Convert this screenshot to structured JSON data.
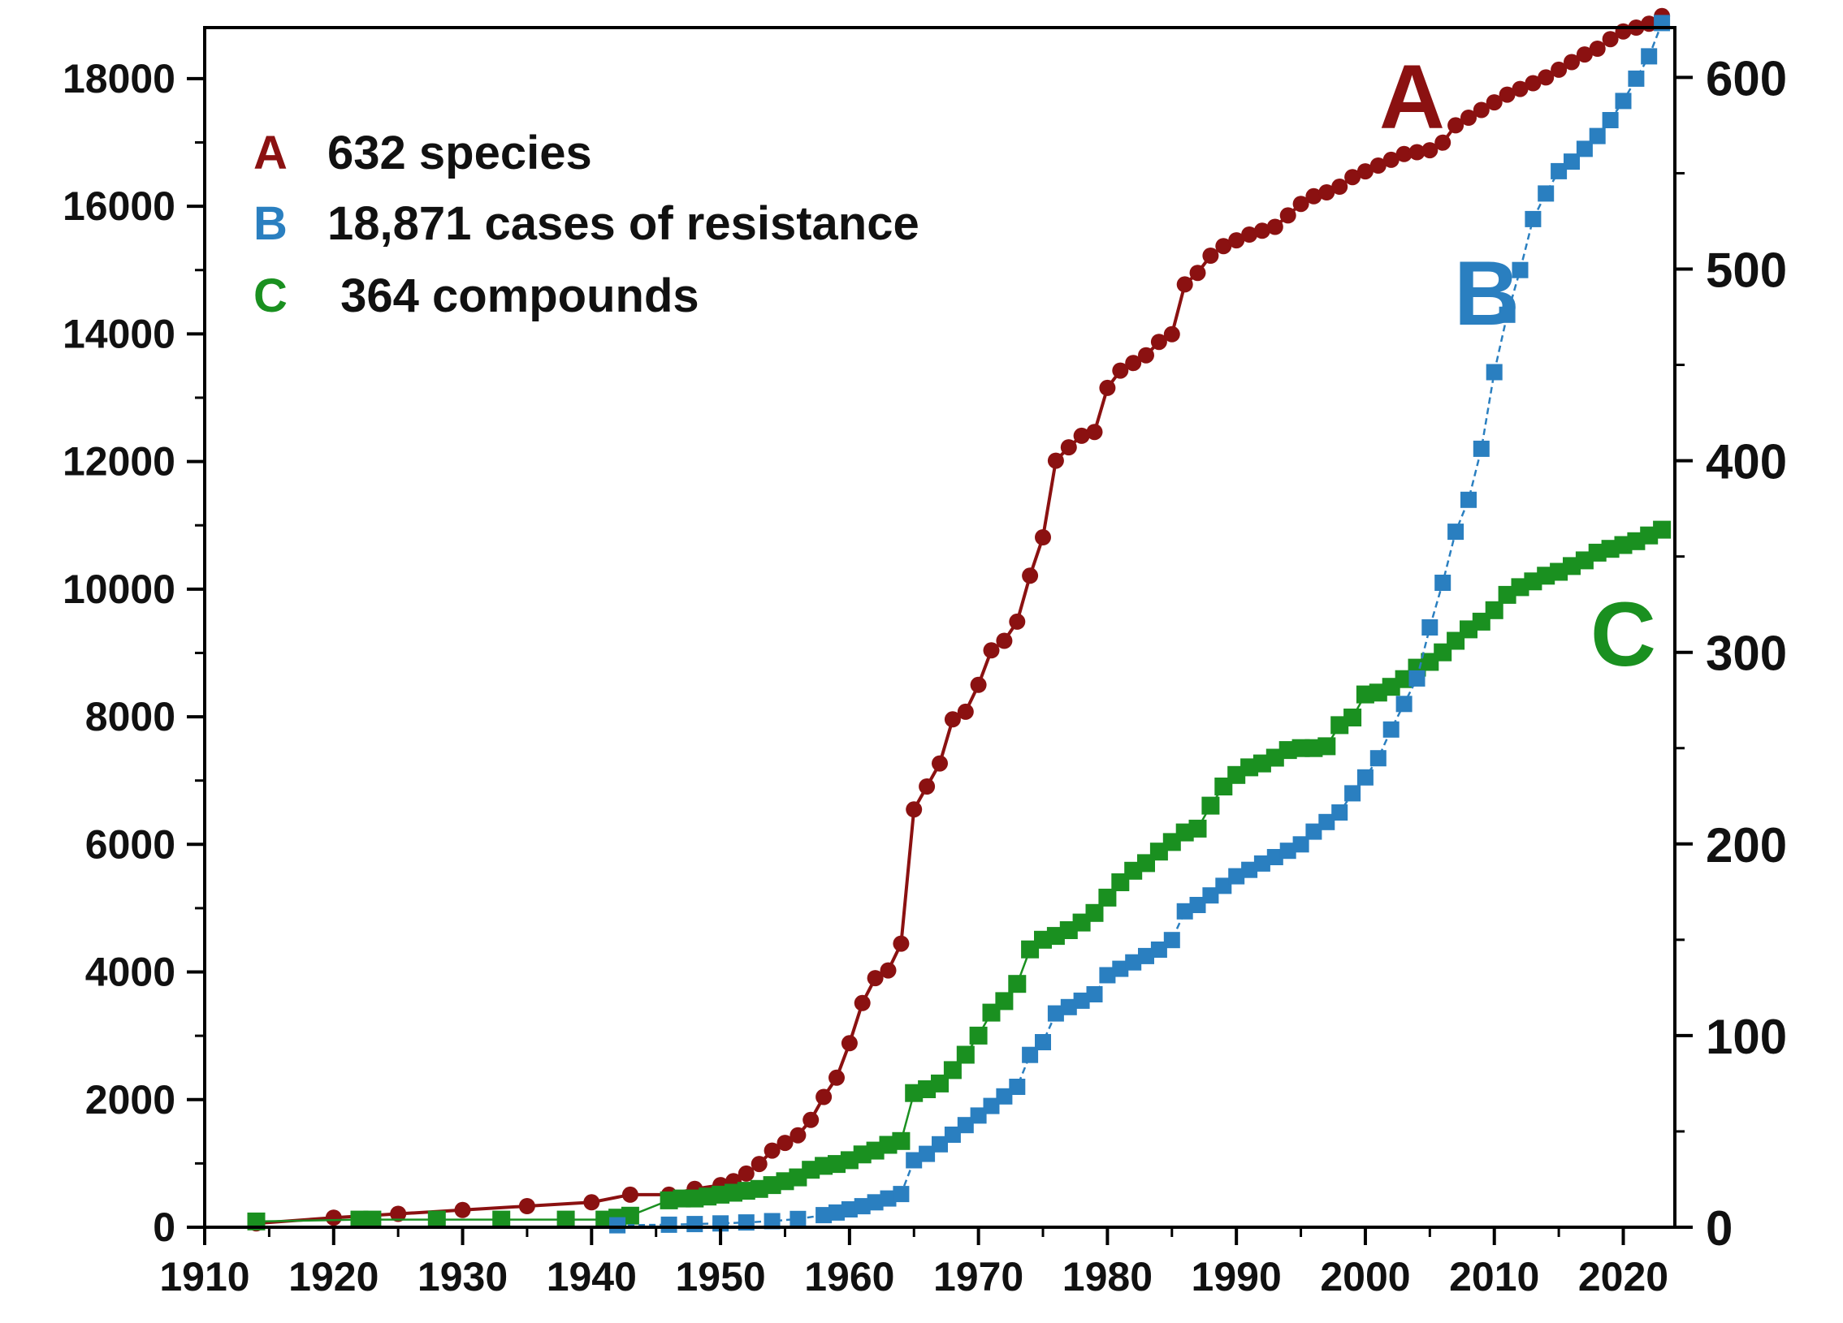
{
  "chart_data": {
    "type": "line",
    "x_axis": {
      "range": [
        1910,
        2024
      ],
      "ticks": [
        1910,
        1920,
        1930,
        1940,
        1950,
        1960,
        1970,
        1980,
        1990,
        2000,
        2010,
        2020
      ],
      "tick_labels": [
        "1910",
        "1920",
        "1930",
        "1940",
        "1950",
        "1960",
        "1970",
        "1980",
        "1990",
        "2000",
        "2010",
        "2020"
      ]
    },
    "y_left": {
      "range": [
        0,
        18800
      ],
      "ticks": [
        0,
        2000,
        4000,
        6000,
        8000,
        10000,
        12000,
        14000,
        16000,
        18000
      ],
      "tick_labels": [
        "0",
        "2000",
        "4000",
        "6000",
        "8000",
        "10000",
        "12000",
        "14000",
        "16000",
        "18000"
      ]
    },
    "y_right": {
      "range": [
        0,
        626
      ],
      "ticks": [
        0,
        100,
        200,
        300,
        400,
        500,
        600
      ],
      "tick_labels": [
        "0",
        "100",
        "200",
        "300",
        "400",
        "500",
        "600"
      ]
    },
    "legend": {
      "position": "top-left",
      "entries": [
        {
          "key": "A",
          "text": "632 species",
          "color": "#8b1111"
        },
        {
          "key": "B",
          "text": "18,871 cases of resistance",
          "color": "#2a7fc0"
        },
        {
          "key": "C",
          "text": " 364 compounds",
          "color": "#1a9020"
        }
      ]
    },
    "series": [
      {
        "name": "A",
        "label": "A",
        "axis": "right",
        "marker": "circle",
        "color": "#8b1111",
        "points": [
          [
            1914,
            2
          ],
          [
            1920,
            5
          ],
          [
            1925,
            7
          ],
          [
            1930,
            9
          ],
          [
            1935,
            11
          ],
          [
            1940,
            13
          ],
          [
            1943,
            17
          ],
          [
            1946,
            17
          ],
          [
            1948,
            20
          ],
          [
            1950,
            22
          ],
          [
            1951,
            24
          ],
          [
            1952,
            28
          ],
          [
            1953,
            33
          ],
          [
            1954,
            40
          ],
          [
            1955,
            44
          ],
          [
            1956,
            48
          ],
          [
            1957,
            56
          ],
          [
            1958,
            68
          ],
          [
            1959,
            78
          ],
          [
            1960,
            96
          ],
          [
            1961,
            117
          ],
          [
            1962,
            130
          ],
          [
            1963,
            134
          ],
          [
            1964,
            148
          ],
          [
            1965,
            218
          ],
          [
            1966,
            230
          ],
          [
            1967,
            242
          ],
          [
            1968,
            265
          ],
          [
            1969,
            269
          ],
          [
            1970,
            283
          ],
          [
            1971,
            301
          ],
          [
            1972,
            306
          ],
          [
            1973,
            316
          ],
          [
            1974,
            340
          ],
          [
            1975,
            360
          ],
          [
            1976,
            400
          ],
          [
            1977,
            407
          ],
          [
            1978,
            413
          ],
          [
            1979,
            415
          ],
          [
            1980,
            438
          ],
          [
            1981,
            447
          ],
          [
            1982,
            451
          ],
          [
            1983,
            455
          ],
          [
            1984,
            462
          ],
          [
            1985,
            466
          ],
          [
            1986,
            492
          ],
          [
            1987,
            498
          ],
          [
            1988,
            507
          ],
          [
            1989,
            512
          ],
          [
            1990,
            515
          ],
          [
            1991,
            518
          ],
          [
            1992,
            520
          ],
          [
            1993,
            522
          ],
          [
            1994,
            528
          ],
          [
            1995,
            534
          ],
          [
            1996,
            538
          ],
          [
            1997,
            540
          ],
          [
            1998,
            543
          ],
          [
            1999,
            548
          ],
          [
            2000,
            551
          ],
          [
            2001,
            554
          ],
          [
            2002,
            557
          ],
          [
            2003,
            560
          ],
          [
            2004,
            561
          ],
          [
            2005,
            562
          ],
          [
            2006,
            566
          ],
          [
            2007,
            575
          ],
          [
            2008,
            579
          ],
          [
            2009,
            583
          ],
          [
            2010,
            587
          ],
          [
            2011,
            591
          ],
          [
            2012,
            594
          ],
          [
            2013,
            597
          ],
          [
            2014,
            600
          ],
          [
            2015,
            604
          ],
          [
            2016,
            608
          ],
          [
            2017,
            612
          ],
          [
            2018,
            615
          ],
          [
            2019,
            620
          ],
          [
            2020,
            624
          ],
          [
            2021,
            626
          ],
          [
            2022,
            628
          ],
          [
            2023,
            632
          ]
        ]
      },
      {
        "name": "B",
        "label": "B",
        "axis": "left",
        "marker": "square",
        "color": "#2a7fc0",
        "points": [
          [
            1942,
            30
          ],
          [
            1946,
            40
          ],
          [
            1948,
            50
          ],
          [
            1950,
            60
          ],
          [
            1952,
            75
          ],
          [
            1954,
            95
          ],
          [
            1956,
            130
          ],
          [
            1958,
            190
          ],
          [
            1959,
            230
          ],
          [
            1960,
            280
          ],
          [
            1961,
            330
          ],
          [
            1962,
            390
          ],
          [
            1963,
            450
          ],
          [
            1964,
            520
          ],
          [
            1965,
            1050
          ],
          [
            1966,
            1150
          ],
          [
            1967,
            1300
          ],
          [
            1968,
            1450
          ],
          [
            1969,
            1600
          ],
          [
            1970,
            1750
          ],
          [
            1971,
            1900
          ],
          [
            1972,
            2050
          ],
          [
            1973,
            2200
          ],
          [
            1974,
            2700
          ],
          [
            1975,
            2900
          ],
          [
            1976,
            3350
          ],
          [
            1977,
            3450
          ],
          [
            1978,
            3550
          ],
          [
            1979,
            3650
          ],
          [
            1980,
            3950
          ],
          [
            1981,
            4050
          ],
          [
            1982,
            4150
          ],
          [
            1983,
            4250
          ],
          [
            1984,
            4350
          ],
          [
            1985,
            4500
          ],
          [
            1986,
            4950
          ],
          [
            1987,
            5050
          ],
          [
            1988,
            5200
          ],
          [
            1989,
            5350
          ],
          [
            1990,
            5500
          ],
          [
            1991,
            5600
          ],
          [
            1992,
            5700
          ],
          [
            1993,
            5800
          ],
          [
            1994,
            5900
          ],
          [
            1995,
            6000
          ],
          [
            1996,
            6200
          ],
          [
            1997,
            6350
          ],
          [
            1998,
            6500
          ],
          [
            1999,
            6800
          ],
          [
            2000,
            7050
          ],
          [
            2001,
            7350
          ],
          [
            2002,
            7800
          ],
          [
            2003,
            8200
          ],
          [
            2004,
            8600
          ],
          [
            2005,
            9400
          ],
          [
            2006,
            10100
          ],
          [
            2007,
            10900
          ],
          [
            2008,
            11400
          ],
          [
            2009,
            12200
          ],
          [
            2010,
            13400
          ],
          [
            2011,
            14300
          ],
          [
            2012,
            15000
          ],
          [
            2013,
            15800
          ],
          [
            2014,
            16200
          ],
          [
            2015,
            16550
          ],
          [
            2016,
            16700
          ],
          [
            2017,
            16900
          ],
          [
            2018,
            17100
          ],
          [
            2019,
            17350
          ],
          [
            2020,
            17650
          ],
          [
            2021,
            18000
          ],
          [
            2022,
            18350
          ],
          [
            2023,
            18871
          ]
        ]
      },
      {
        "name": "C",
        "label": "C",
        "axis": "right",
        "marker": "square",
        "color": "#1a9020",
        "points": [
          [
            1914,
            3
          ],
          [
            1922,
            4
          ],
          [
            1923,
            4
          ],
          [
            1928,
            4
          ],
          [
            1933,
            4
          ],
          [
            1938,
            4
          ],
          [
            1941,
            4
          ],
          [
            1942,
            5
          ],
          [
            1943,
            6
          ],
          [
            1946,
            14
          ],
          [
            1947,
            15
          ],
          [
            1948,
            15
          ],
          [
            1949,
            16
          ],
          [
            1950,
            17
          ],
          [
            1951,
            18
          ],
          [
            1952,
            19
          ],
          [
            1953,
            20
          ],
          [
            1954,
            22
          ],
          [
            1955,
            24
          ],
          [
            1956,
            26
          ],
          [
            1957,
            30
          ],
          [
            1958,
            32
          ],
          [
            1959,
            33
          ],
          [
            1960,
            35
          ],
          [
            1961,
            38
          ],
          [
            1962,
            40
          ],
          [
            1963,
            43
          ],
          [
            1964,
            45
          ],
          [
            1965,
            70
          ],
          [
            1966,
            72
          ],
          [
            1967,
            75
          ],
          [
            1968,
            82
          ],
          [
            1969,
            90
          ],
          [
            1970,
            100
          ],
          [
            1971,
            112
          ],
          [
            1972,
            118
          ],
          [
            1973,
            127
          ],
          [
            1974,
            145
          ],
          [
            1975,
            150
          ],
          [
            1976,
            152
          ],
          [
            1977,
            155
          ],
          [
            1978,
            159
          ],
          [
            1979,
            164
          ],
          [
            1980,
            172
          ],
          [
            1981,
            180
          ],
          [
            1982,
            186
          ],
          [
            1983,
            190
          ],
          [
            1984,
            196
          ],
          [
            1985,
            201
          ],
          [
            1986,
            206
          ],
          [
            1987,
            208
          ],
          [
            1988,
            220
          ],
          [
            1989,
            230
          ],
          [
            1990,
            236
          ],
          [
            1991,
            240
          ],
          [
            1992,
            242
          ],
          [
            1993,
            245
          ],
          [
            1994,
            249
          ],
          [
            1995,
            250
          ],
          [
            1996,
            250
          ],
          [
            1997,
            251
          ],
          [
            1998,
            262
          ],
          [
            1999,
            266
          ],
          [
            2000,
            278
          ],
          [
            2001,
            279
          ],
          [
            2002,
            282
          ],
          [
            2003,
            286
          ],
          [
            2004,
            292
          ],
          [
            2005,
            295
          ],
          [
            2006,
            300
          ],
          [
            2007,
            306
          ],
          [
            2008,
            312
          ],
          [
            2009,
            316
          ],
          [
            2010,
            322
          ],
          [
            2011,
            330
          ],
          [
            2012,
            334
          ],
          [
            2013,
            337
          ],
          [
            2014,
            340
          ],
          [
            2015,
            342
          ],
          [
            2016,
            345
          ],
          [
            2017,
            348
          ],
          [
            2018,
            352
          ],
          [
            2019,
            354
          ],
          [
            2020,
            356
          ],
          [
            2021,
            358
          ],
          [
            2022,
            361
          ],
          [
            2023,
            364
          ]
        ]
      }
    ]
  }
}
